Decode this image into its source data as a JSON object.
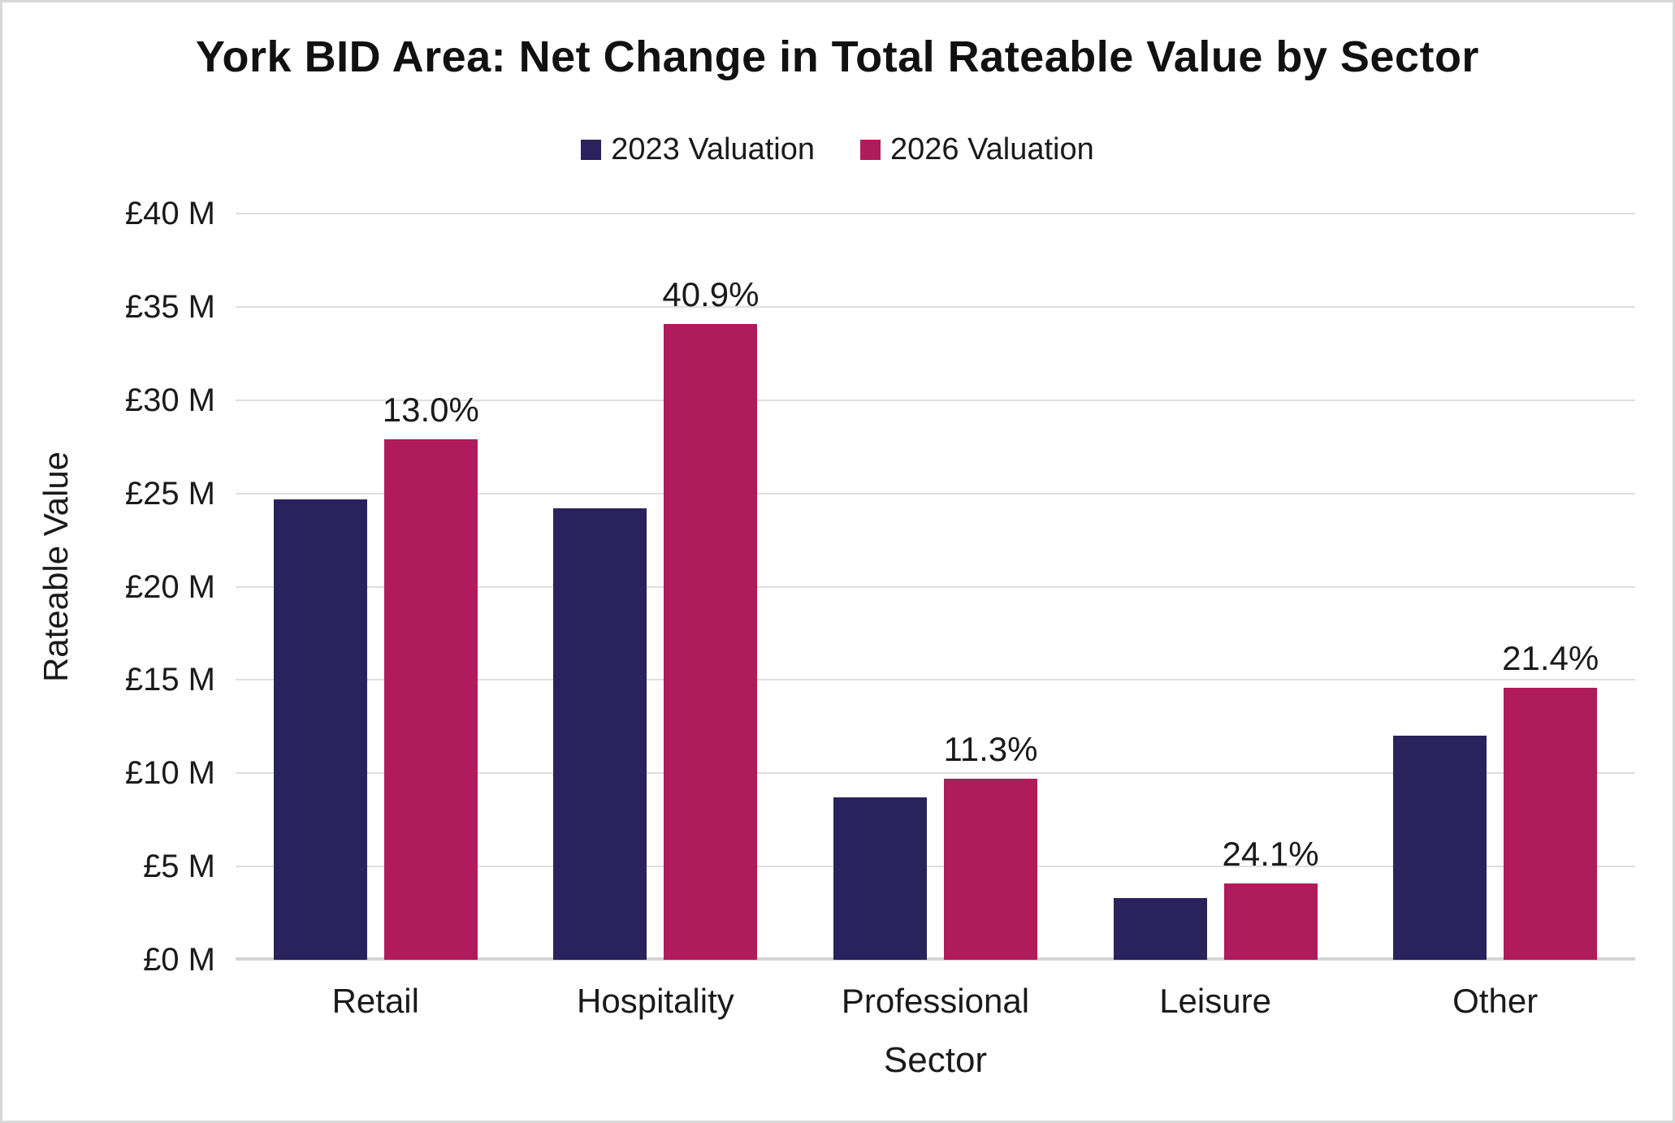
{
  "title": "York BID Area: Net Change in Total Rateable Value by Sector",
  "legend": {
    "items": [
      {
        "label": "2023 Valuation",
        "color": "#2A225C"
      },
      {
        "label": "2026 Valuation",
        "color": "#B01B5C"
      }
    ]
  },
  "axes": {
    "y_title": "Rateable Value",
    "x_title": "Sector",
    "y_tick_labels": [
      "£0 M",
      "£5 M",
      "£10 M",
      "£15 M",
      "£20 M",
      "£25 M",
      "£30 M",
      "£35 M",
      "£40 M"
    ]
  },
  "chart_data": {
    "type": "bar",
    "title": "York BID Area: Net Change in Total Rateable Value by Sector",
    "categories": [
      "Retail",
      "Hospitality",
      "Professional",
      "Leisure",
      "Other"
    ],
    "series": [
      {
        "name": "2023 Valuation",
        "color": "#2A225C",
        "values": [
          24.7,
          24.2,
          8.7,
          3.3,
          12.0
        ]
      },
      {
        "name": "2026 Valuation",
        "color": "#B01B5C",
        "values": [
          27.9,
          34.1,
          9.7,
          4.1,
          14.6
        ]
      }
    ],
    "bar_labels_pct_change": [
      "13.0%",
      "40.9%",
      "11.3%",
      "24.1%",
      "21.4%"
    ],
    "xlabel": "Sector",
    "ylabel": "Rateable Value",
    "ylim": [
      0,
      40
    ],
    "ytick_step": 5,
    "ytick_format": "£{v} M",
    "grid": true,
    "legend_position": "top"
  },
  "colors": {
    "series_2023": "#2A225C",
    "series_2026": "#B01B5C",
    "gridline": "#DEDEDE",
    "axis_line": "#D4D4D4",
    "text": "#1A1A1A",
    "canvas_border": "#D8D8D8",
    "background": "#FFFFFF"
  }
}
